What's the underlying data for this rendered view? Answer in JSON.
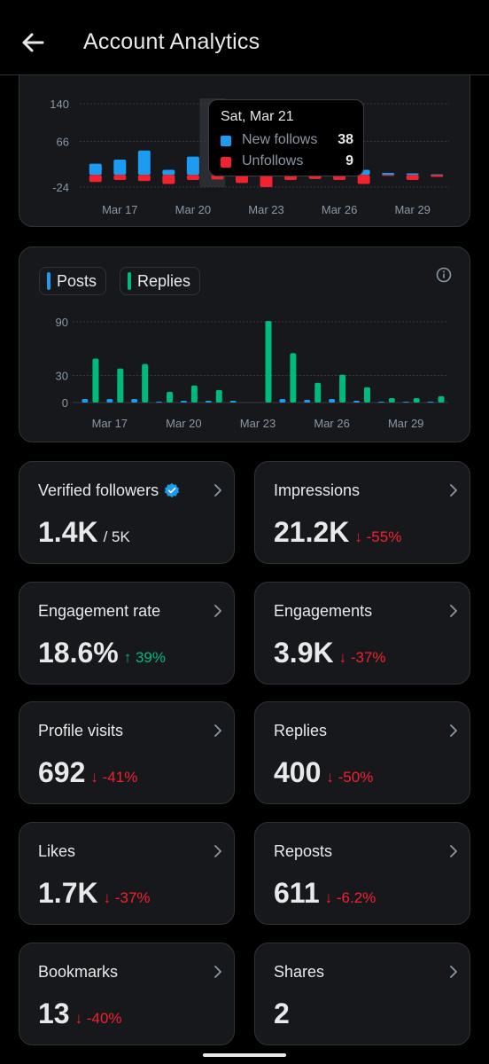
{
  "header": {
    "title": "Account Analytics"
  },
  "colors": {
    "blue": "#1d9bf0",
    "red": "#f4212e",
    "green": "#00ba7c",
    "grid": "#3a3d41",
    "muted": "#8b98a5"
  },
  "follows_chart": {
    "chart_data": {
      "type": "bar",
      "title": "",
      "categories": [
        "Mar 16",
        "Mar 17",
        "Mar 18",
        "Mar 19",
        "Mar 20",
        "Mar 21",
        "Mar 22",
        "Mar 23",
        "Mar 24",
        "Mar 25",
        "Mar 26",
        "Mar 27",
        "Mar 28",
        "Mar 29",
        "Mar 30"
      ],
      "x_tick_labels": [
        "Mar 17",
        "Mar 20",
        "Mar 23",
        "Mar 26",
        "Mar 29"
      ],
      "y_tick_labels": [
        "140",
        "66",
        "-24"
      ],
      "ylim": [
        -24,
        140
      ],
      "series": [
        {
          "name": "New follows",
          "values": [
            22,
            30,
            48,
            10,
            36,
            38,
            110,
            140,
            45,
            15,
            12,
            10,
            4,
            3,
            1
          ]
        },
        {
          "name": "Unfollows",
          "values": [
            -14,
            -10,
            -12,
            -18,
            -10,
            -9,
            -16,
            -24,
            -10,
            -8,
            -10,
            -18,
            -2,
            -10,
            -4
          ]
        }
      ]
    },
    "tooltip": {
      "date": "Sat, Mar 21",
      "new_follows_label": "New follows",
      "new_follows_value": "38",
      "unfollows_label": "Unfollows",
      "unfollows_value": "9"
    }
  },
  "activity_chart": {
    "legend": {
      "posts": "Posts",
      "replies": "Replies"
    },
    "chart_data": {
      "type": "bar",
      "title": "",
      "categories": [
        "Mar 16",
        "Mar 17",
        "Mar 18",
        "Mar 19",
        "Mar 20",
        "Mar 21",
        "Mar 22",
        "Mar 23",
        "Mar 24",
        "Mar 25",
        "Mar 26",
        "Mar 27",
        "Mar 28",
        "Mar 29",
        "Mar 30"
      ],
      "x_tick_labels": [
        "Mar 17",
        "Mar 20",
        "Mar 23",
        "Mar 26",
        "Mar 29"
      ],
      "y_tick_labels": [
        "90",
        "30",
        "0"
      ],
      "ylim": [
        0,
        90
      ],
      "series": [
        {
          "name": "Posts",
          "values": [
            4,
            4,
            4,
            1,
            2,
            2,
            2,
            0,
            4,
            3,
            4,
            2,
            1,
            1,
            1
          ]
        },
        {
          "name": "Replies",
          "values": [
            49,
            38,
            43,
            12,
            19,
            14,
            0,
            91,
            55,
            22,
            31,
            17,
            5,
            5,
            7
          ]
        }
      ]
    }
  },
  "metrics": [
    {
      "label": "Verified followers",
      "value": "1.4K",
      "sub": "/ 5K",
      "trend": "neutral",
      "verified": true
    },
    {
      "label": "Impressions",
      "value": "21.2K",
      "sub": "-55%",
      "trend": "down"
    },
    {
      "label": "Engagement rate",
      "value": "18.6%",
      "sub": "39%",
      "trend": "up"
    },
    {
      "label": "Engagements",
      "value": "3.9K",
      "sub": "-37%",
      "trend": "down"
    },
    {
      "label": "Profile visits",
      "value": "692",
      "sub": "-41%",
      "trend": "down"
    },
    {
      "label": "Replies",
      "value": "400",
      "sub": "-50%",
      "trend": "down"
    },
    {
      "label": "Likes",
      "value": "1.7K",
      "sub": "-37%",
      "trend": "down"
    },
    {
      "label": "Reposts",
      "value": "611",
      "sub": "-6.2%",
      "trend": "down"
    },
    {
      "label": "Bookmarks",
      "value": "13",
      "sub": "-40%",
      "trend": "down"
    },
    {
      "label": "Shares",
      "value": "2",
      "sub": "",
      "trend": "none"
    }
  ]
}
